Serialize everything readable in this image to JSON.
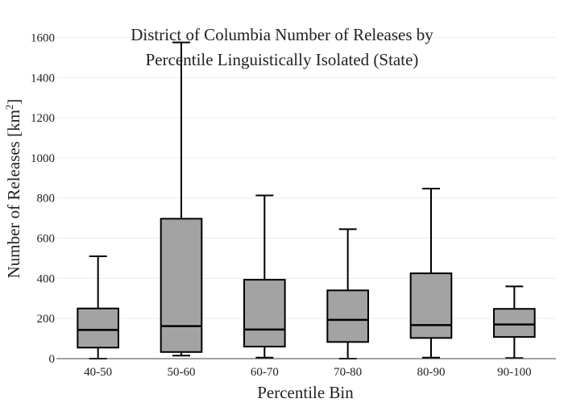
{
  "chart_data": {
    "type": "box",
    "title_lines": [
      "District of Columbia Number of Releases by",
      "Percentile Linguistically Isolated (State)"
    ],
    "xlabel": "Percentile Bin",
    "ylabel_main": "Number of Releases  [km",
    "ylabel_sup": "2",
    "ylabel_end": "]",
    "ylim": [
      0,
      1650
    ],
    "y_ticks": [
      0,
      200,
      400,
      600,
      800,
      1000,
      1200,
      1400,
      1600
    ],
    "grid": true,
    "box_color": "#a3a3a3",
    "categories": [
      "40-50",
      "50-60",
      "60-70",
      "70-80",
      "80-90",
      "90-100"
    ],
    "boxes": [
      {
        "category": "40-50",
        "min": 0,
        "q1": 55,
        "median": 143,
        "q3": 250,
        "max": 510
      },
      {
        "category": "50-60",
        "min": 15,
        "q1": 33,
        "median": 162,
        "q3": 697,
        "max": 1575
      },
      {
        "category": "60-70",
        "min": 5,
        "q1": 60,
        "median": 145,
        "q3": 393,
        "max": 813
      },
      {
        "category": "70-80",
        "min": 0,
        "q1": 83,
        "median": 193,
        "q3": 340,
        "max": 645
      },
      {
        "category": "80-90",
        "min": 5,
        "q1": 103,
        "median": 167,
        "q3": 425,
        "max": 847
      },
      {
        "category": "90-100",
        "min": 3,
        "q1": 108,
        "median": 170,
        "q3": 248,
        "max": 360
      }
    ]
  }
}
